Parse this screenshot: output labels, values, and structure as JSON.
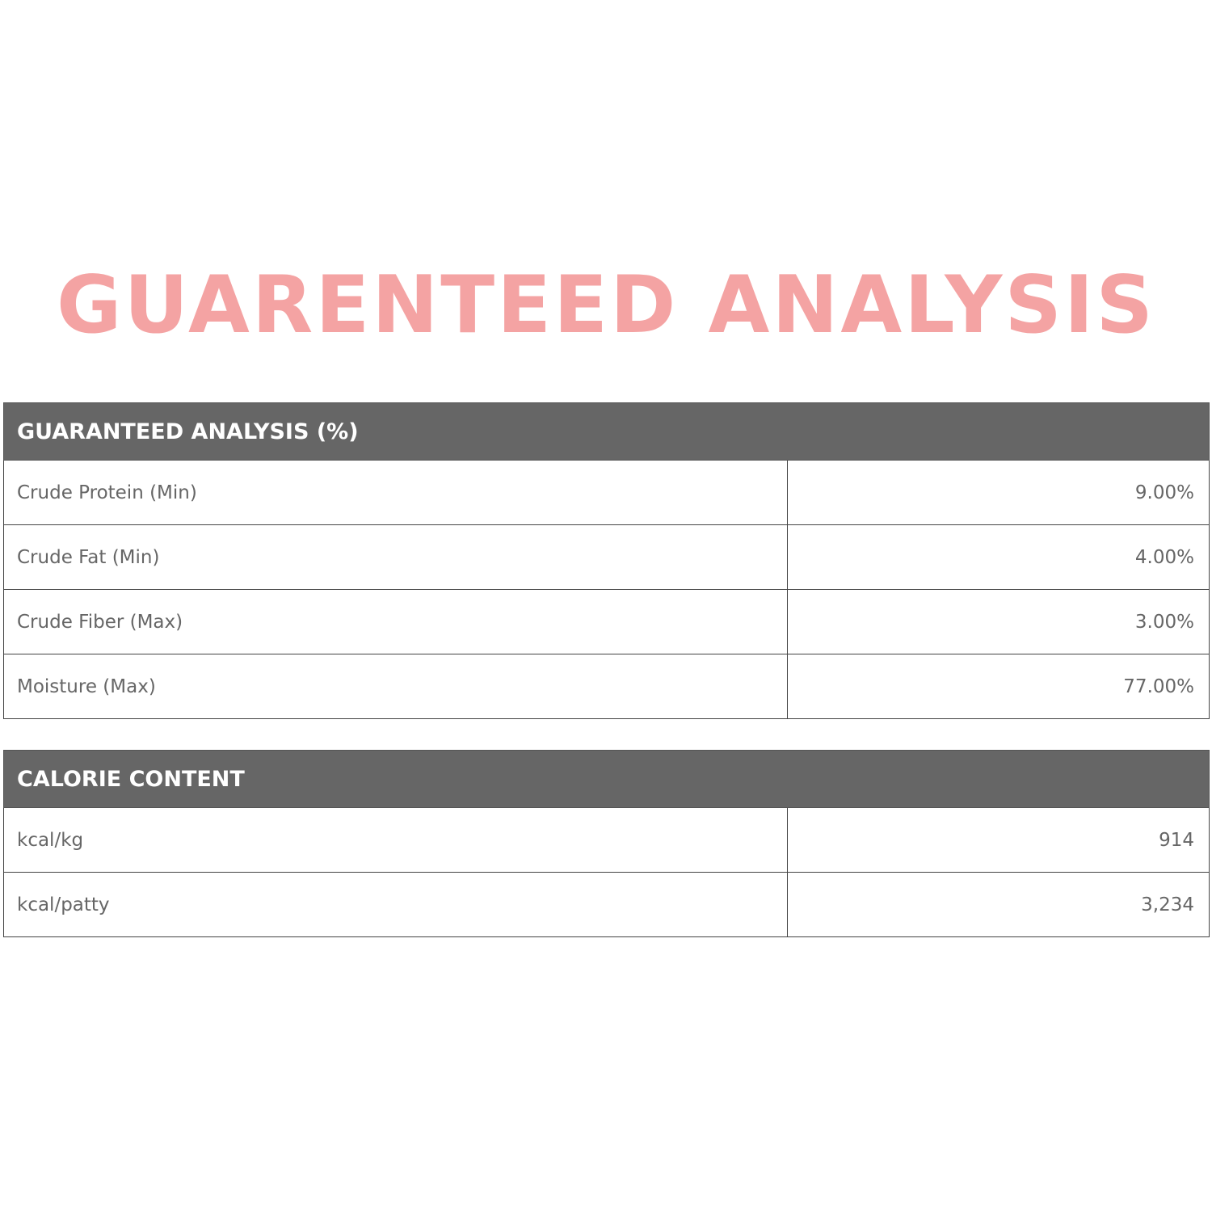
{
  "title": "GUARENTEED ANALYSIS",
  "accent_color": "#f4a3a3",
  "header_color": "#666666",
  "analysis": {
    "header": "GUARANTEED ANALYSIS (%)",
    "rows": [
      {
        "label": "Crude Protein (Min)",
        "value": "9.00%"
      },
      {
        "label": "Crude Fat (Min)",
        "value": "4.00%"
      },
      {
        "label": "Crude Fiber (Max)",
        "value": "3.00%"
      },
      {
        "label": "Moisture (Max)",
        "value": "77.00%"
      }
    ]
  },
  "calories": {
    "header": "CALORIE CONTENT",
    "rows": [
      {
        "label": "kcal/kg",
        "value": "914"
      },
      {
        "label": "kcal/patty",
        "value": "3,234"
      }
    ]
  }
}
